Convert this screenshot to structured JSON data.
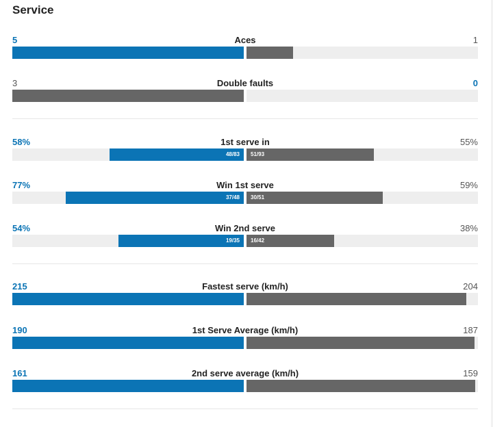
{
  "title": "Service",
  "colors": {
    "player1": "#0b74b5",
    "player2": "#666666",
    "track": "#eeeeee"
  },
  "stats": [
    {
      "name": "Aces",
      "left": "5",
      "right": "1",
      "leftFill": 1.0,
      "rightFill": 0.2,
      "winner": "left"
    },
    {
      "name": "Double faults",
      "left": "3",
      "right": "0",
      "leftFill": 1.0,
      "rightFill": 0.0,
      "winner": "right"
    },
    {
      "name": "1st serve in",
      "left": "58%",
      "right": "55%",
      "leftFill": 0.58,
      "rightFill": 0.55,
      "leftFrac": "48/83",
      "rightFrac": "51/93",
      "winner": "left"
    },
    {
      "name": "Win 1st serve",
      "left": "77%",
      "right": "59%",
      "leftFill": 0.77,
      "rightFill": 0.59,
      "leftFrac": "37/48",
      "rightFrac": "30/51",
      "winner": "left"
    },
    {
      "name": "Win 2nd serve",
      "left": "54%",
      "right": "38%",
      "leftFill": 0.54,
      "rightFill": 0.38,
      "leftFrac": "19/35",
      "rightFrac": "16/42",
      "winner": "left"
    },
    {
      "name": "Fastest serve (km/h)",
      "left": "215",
      "right": "204",
      "leftFill": 1.0,
      "rightFill": 0.949,
      "winner": "left"
    },
    {
      "name": "1st Serve Average (km/h)",
      "left": "190",
      "right": "187",
      "leftFill": 1.0,
      "rightFill": 0.984,
      "winner": "left"
    },
    {
      "name": "2nd serve average (km/h)",
      "left": "161",
      "right": "159",
      "leftFill": 1.0,
      "rightFill": 0.988,
      "winner": "left"
    }
  ]
}
